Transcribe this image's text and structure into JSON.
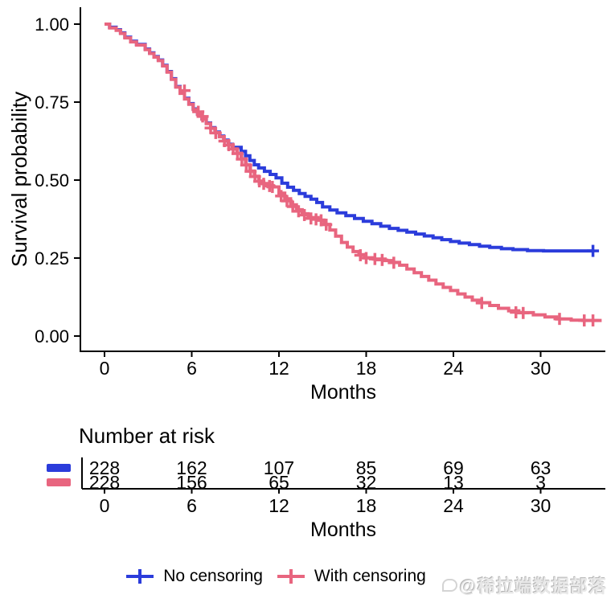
{
  "chart_data": {
    "type": "line",
    "subtype": "kaplan-meier-step-survival",
    "title": "",
    "xlabel": "Months",
    "ylabel": "Survival probability",
    "xlim": [
      0,
      34.5
    ],
    "ylim": [
      0,
      1
    ],
    "grid": false,
    "legend_position": "bottom",
    "xticks": [
      {
        "value": 0,
        "label": "0"
      },
      {
        "value": 6,
        "label": "6"
      },
      {
        "value": 12,
        "label": "12"
      },
      {
        "value": 18,
        "label": "18"
      },
      {
        "value": 24,
        "label": "24"
      },
      {
        "value": 30,
        "label": "30"
      }
    ],
    "yticks": [
      {
        "value": 0.0,
        "label": "0.00"
      },
      {
        "value": 0.25,
        "label": "0.25"
      },
      {
        "value": 0.5,
        "label": "0.50"
      },
      {
        "value": 0.75,
        "label": "0.75"
      },
      {
        "value": 1.0,
        "label": "1.00"
      }
    ],
    "series": [
      {
        "name": "No censoring",
        "color": "#2b3cdb",
        "steps": [
          [
            0,
            1.0
          ],
          [
            0.35,
            0.99
          ],
          [
            0.8,
            0.982
          ],
          [
            1.1,
            0.972
          ],
          [
            1.4,
            0.958
          ],
          [
            1.8,
            0.945
          ],
          [
            2.2,
            0.935
          ],
          [
            2.8,
            0.92
          ],
          [
            3.1,
            0.908
          ],
          [
            3.4,
            0.896
          ],
          [
            3.7,
            0.885
          ],
          [
            4.0,
            0.868
          ],
          [
            4.3,
            0.848
          ],
          [
            4.6,
            0.825
          ],
          [
            4.9,
            0.8
          ],
          [
            5.2,
            0.78
          ],
          [
            5.5,
            0.762
          ],
          [
            5.8,
            0.745
          ],
          [
            6.1,
            0.728
          ],
          [
            6.4,
            0.712
          ],
          [
            6.7,
            0.697
          ],
          [
            7.0,
            0.683
          ],
          [
            7.3,
            0.668
          ],
          [
            7.6,
            0.654
          ],
          [
            7.9,
            0.641
          ],
          [
            8.2,
            0.628
          ],
          [
            8.5,
            0.615
          ],
          [
            8.8,
            0.605
          ],
          [
            9.4,
            0.592
          ],
          [
            9.7,
            0.578
          ],
          [
            10.0,
            0.563
          ],
          [
            10.3,
            0.549
          ],
          [
            10.6,
            0.539
          ],
          [
            11.0,
            0.528
          ],
          [
            11.4,
            0.518
          ],
          [
            11.8,
            0.507
          ],
          [
            12.2,
            0.49
          ],
          [
            12.6,
            0.477
          ],
          [
            13.0,
            0.467
          ],
          [
            13.4,
            0.457
          ],
          [
            13.8,
            0.448
          ],
          [
            14.2,
            0.439
          ],
          [
            14.6,
            0.428
          ],
          [
            15.0,
            0.414
          ],
          [
            15.5,
            0.404
          ],
          [
            16.0,
            0.395
          ],
          [
            16.6,
            0.386
          ],
          [
            17.2,
            0.377
          ],
          [
            17.8,
            0.368
          ],
          [
            18.4,
            0.36
          ],
          [
            19.0,
            0.352
          ],
          [
            19.6,
            0.345
          ],
          [
            20.2,
            0.339
          ],
          [
            20.8,
            0.333
          ],
          [
            21.4,
            0.327
          ],
          [
            22.0,
            0.321
          ],
          [
            22.6,
            0.315
          ],
          [
            23.2,
            0.309
          ],
          [
            23.8,
            0.303
          ],
          [
            24.4,
            0.298
          ],
          [
            25.1,
            0.293
          ],
          [
            25.8,
            0.288
          ],
          [
            26.5,
            0.284
          ],
          [
            27.3,
            0.28
          ],
          [
            28.1,
            0.277
          ],
          [
            29.1,
            0.274
          ],
          [
            30.2,
            0.273
          ],
          [
            33.6,
            0.273
          ]
        ],
        "censor_marks": [
          [
            33.6,
            0.273
          ]
        ]
      },
      {
        "name": "With censoring",
        "color": "#e8657f",
        "steps": [
          [
            0,
            1.0
          ],
          [
            0.35,
            0.988
          ],
          [
            0.8,
            0.98
          ],
          [
            1.1,
            0.97
          ],
          [
            1.4,
            0.956
          ],
          [
            1.8,
            0.943
          ],
          [
            2.2,
            0.933
          ],
          [
            2.8,
            0.918
          ],
          [
            3.1,
            0.906
          ],
          [
            3.4,
            0.894
          ],
          [
            3.7,
            0.883
          ],
          [
            4.0,
            0.866
          ],
          [
            4.3,
            0.846
          ],
          [
            4.6,
            0.823
          ],
          [
            4.9,
            0.798
          ],
          [
            5.2,
            0.778
          ],
          [
            5.5,
            0.76
          ],
          [
            5.8,
            0.743
          ],
          [
            6.1,
            0.726
          ],
          [
            6.4,
            0.71
          ],
          [
            6.7,
            0.695
          ],
          [
            7.0,
            0.681
          ],
          [
            7.3,
            0.666
          ],
          [
            7.6,
            0.652
          ],
          [
            7.9,
            0.639
          ],
          [
            8.2,
            0.626
          ],
          [
            8.5,
            0.613
          ],
          [
            8.8,
            0.6
          ],
          [
            9.1,
            0.586
          ],
          [
            9.4,
            0.568
          ],
          [
            9.7,
            0.549
          ],
          [
            10.0,
            0.529
          ],
          [
            10.3,
            0.512
          ],
          [
            10.6,
            0.497
          ],
          [
            10.9,
            0.489
          ],
          [
            11.3,
            0.482
          ],
          [
            11.6,
            0.478
          ],
          [
            12.0,
            0.458
          ],
          [
            12.4,
            0.44
          ],
          [
            12.8,
            0.421
          ],
          [
            13.2,
            0.405
          ],
          [
            13.6,
            0.392
          ],
          [
            14.0,
            0.38
          ],
          [
            14.7,
            0.372
          ],
          [
            15.1,
            0.358
          ],
          [
            15.5,
            0.34
          ],
          [
            15.9,
            0.32
          ],
          [
            16.3,
            0.3
          ],
          [
            16.7,
            0.285
          ],
          [
            17.1,
            0.271
          ],
          [
            17.5,
            0.261
          ],
          [
            17.9,
            0.251
          ],
          [
            18.5,
            0.247
          ],
          [
            19.3,
            0.242
          ],
          [
            19.8,
            0.236
          ],
          [
            20.3,
            0.227
          ],
          [
            20.8,
            0.215
          ],
          [
            21.3,
            0.203
          ],
          [
            21.8,
            0.191
          ],
          [
            22.3,
            0.179
          ],
          [
            22.8,
            0.167
          ],
          [
            23.3,
            0.156
          ],
          [
            23.8,
            0.146
          ],
          [
            24.3,
            0.135
          ],
          [
            24.8,
            0.125
          ],
          [
            25.3,
            0.115
          ],
          [
            25.9,
            0.107
          ],
          [
            26.5,
            0.098
          ],
          [
            27.1,
            0.089
          ],
          [
            27.8,
            0.081
          ],
          [
            28.5,
            0.075
          ],
          [
            29.5,
            0.068
          ],
          [
            30.3,
            0.061
          ],
          [
            31.1,
            0.055
          ],
          [
            32.1,
            0.051
          ],
          [
            32.9,
            0.05
          ],
          [
            34.2,
            0.05
          ]
        ],
        "censor_marks": [
          [
            5.5,
            0.787
          ],
          [
            6.45,
            0.719
          ],
          [
            6.75,
            0.704
          ],
          [
            7.3,
            0.667
          ],
          [
            7.65,
            0.651
          ],
          [
            8.25,
            0.625
          ],
          [
            8.55,
            0.612
          ],
          [
            8.85,
            0.6
          ],
          [
            9.15,
            0.585
          ],
          [
            9.45,
            0.567
          ],
          [
            9.75,
            0.548
          ],
          [
            10.05,
            0.528
          ],
          [
            10.35,
            0.511
          ],
          [
            10.65,
            0.496
          ],
          [
            10.95,
            0.488
          ],
          [
            11.35,
            0.481
          ],
          [
            11.55,
            0.478
          ],
          [
            12.15,
            0.449
          ],
          [
            12.55,
            0.433
          ],
          [
            12.95,
            0.415
          ],
          [
            13.35,
            0.4
          ],
          [
            13.75,
            0.388
          ],
          [
            14.2,
            0.377
          ],
          [
            14.55,
            0.374
          ],
          [
            14.9,
            0.371
          ],
          [
            15.25,
            0.357
          ],
          [
            17.6,
            0.259
          ],
          [
            18.0,
            0.25
          ],
          [
            18.6,
            0.247
          ],
          [
            19.1,
            0.244
          ],
          [
            19.9,
            0.235
          ],
          [
            25.95,
            0.106
          ],
          [
            28.3,
            0.076
          ],
          [
            28.8,
            0.074
          ],
          [
            31.3,
            0.055
          ],
          [
            33.0,
            0.05
          ],
          [
            33.6,
            0.05
          ]
        ]
      }
    ],
    "risk_table": {
      "title": "Number at risk",
      "xlabel": "Months",
      "xticks": [
        {
          "value": 0,
          "label": "0"
        },
        {
          "value": 6,
          "label": "6"
        },
        {
          "value": 12,
          "label": "12"
        },
        {
          "value": 18,
          "label": "18"
        },
        {
          "value": 24,
          "label": "24"
        },
        {
          "value": 30,
          "label": "30"
        }
      ],
      "rows": [
        {
          "series": "No censoring",
          "color": "#2b3cdb",
          "values": [
            228,
            162,
            107,
            85,
            69,
            63
          ]
        },
        {
          "series": "With censoring",
          "color": "#e8657f",
          "values": [
            228,
            156,
            65,
            32,
            13,
            3
          ]
        }
      ]
    }
  },
  "legend": {
    "items": [
      {
        "label": "No censoring",
        "color": "#2b3cdb",
        "marker": "plus-on-line-icon"
      },
      {
        "label": "With censoring",
        "color": "#e8657f",
        "marker": "plus-on-line-icon"
      }
    ]
  },
  "watermark": {
    "text": "@稀拉端数据部落",
    "icon": "speech-bubble-icon"
  },
  "colors": {
    "axis": "#000000",
    "text": "#000000",
    "background": "#ffffff"
  }
}
